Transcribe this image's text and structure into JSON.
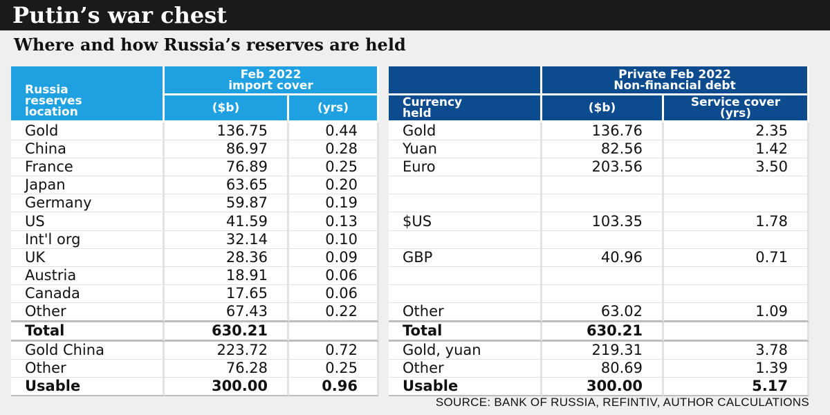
{
  "title": "Putin’s war chest",
  "subtitle": "Where and how Russia’s reserves are held",
  "source": "SOURCE: BANK OF RUSSIA, REFINTIV, AUTHOR CALCULATIONS",
  "left_table": {
    "group_header": "Feb 2022\nimport cover",
    "location_header": "Russia\nreserves\nlocation",
    "col_b": "($b)",
    "col_yrs": "(yrs)",
    "rows": [
      [
        "Gold",
        "136.75",
        "0.44"
      ],
      [
        "China",
        "86.97",
        "0.28"
      ],
      [
        "France",
        "76.89",
        "0.25"
      ],
      [
        "Japan",
        "63.65",
        "0.20"
      ],
      [
        "Germany",
        "59.87",
        "0.19"
      ],
      [
        "US",
        "41.59",
        "0.13"
      ],
      [
        "Int'l org",
        "32.14",
        "0.10"
      ],
      [
        "UK",
        "28.36",
        "0.09"
      ],
      [
        "Austria",
        "18.91",
        "0.06"
      ],
      [
        "Canada",
        "17.65",
        "0.06"
      ],
      [
        "Other",
        "67.43",
        "0.22"
      ],
      [
        "Total",
        "630.21",
        ""
      ],
      [
        "Gold China",
        "223.72",
        "0.72"
      ],
      [
        "Other",
        "76.28",
        "0.25"
      ],
      [
        "Usable",
        "300.00",
        "0.96"
      ]
    ]
  },
  "right_table": {
    "group_header": "Private Feb 2022\nNon-financial debt",
    "currency_header": "Currency\nheld",
    "col_b": "($b)",
    "col_service": "Service cover\n(yrs)",
    "rows": [
      [
        "Gold",
        "136.76",
        "2.35"
      ],
      [
        "Yuan",
        "82.56",
        "1.42"
      ],
      [
        "Euro",
        "203.56",
        "3.50"
      ],
      [
        "",
        "",
        ""
      ],
      [
        "",
        "",
        ""
      ],
      [
        "$US",
        "103.35",
        "1.78"
      ],
      [
        "",
        "",
        ""
      ],
      [
        "GBP",
        "40.96",
        "0.71"
      ],
      [
        "",
        "",
        ""
      ],
      [
        "",
        "",
        ""
      ],
      [
        "Other",
        "63.02",
        "1.09"
      ],
      [
        "Total",
        "630.21",
        ""
      ],
      [
        "Gold, yuan",
        "219.31",
        "3.78"
      ],
      [
        "Other",
        "80.69",
        "1.39"
      ],
      [
        "Usable",
        "300.00",
        "5.17"
      ]
    ]
  }
}
